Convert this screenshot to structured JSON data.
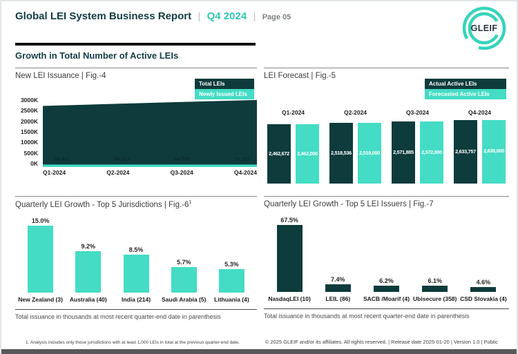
{
  "header": {
    "title": "Global LEI System Business Report",
    "divider": "|",
    "quarter": "Q4 2024",
    "page_label": "Page 05",
    "logo_text": "GLEIF"
  },
  "section_title": "Growth in Total Number of Active LEIs",
  "colors": {
    "dark_teal": "#0e3b3c",
    "teal": "#44dcc4",
    "accent_teal": "#2fc8b5",
    "heading_teal": "#123c46"
  },
  "chart_data": [
    {
      "id": "fig4",
      "type": "area",
      "title": "New LEI Issuance | Fig.-4",
      "legend": [
        "Total LEIs",
        "Newly Issued LEIs"
      ],
      "legend_position": "top-right",
      "grid": false,
      "x": [
        "Q1-2024",
        "Q2-2024",
        "Q3-2024",
        "Q4-2024"
      ],
      "y_ticks": [
        "3000K",
        "2500K",
        "2000K",
        "1500K",
        "1000K",
        "500K",
        "0K"
      ],
      "ylim": [
        0,
        3000000
      ],
      "series": [
        {
          "name": "Total LEIs",
          "color": "#0e3b3c",
          "values": [
            2605000,
            2690000,
            2775000,
            2855000
          ]
        },
        {
          "name": "Newly Issued LEIs",
          "color": "#44dcc4",
          "values": [
            54491,
            58018,
            64778,
            75157
          ],
          "labels": [
            "54,491",
            "58,018",
            "64,778",
            "75,157"
          ]
        }
      ]
    },
    {
      "id": "fig5",
      "type": "bar",
      "title": "LEI Forecast | Fig.-5",
      "legend": [
        "Actual Active LEIs",
        "Forecasted Active LEIs"
      ],
      "legend_position": "top-right",
      "grid": false,
      "categories": [
        "Q1-2024",
        "Q2-2024",
        "Q3-2024",
        "Q4-2024"
      ],
      "series": [
        {
          "name": "Actual Active LEIs",
          "color": "#0e3b3c",
          "values": [
            2462672,
            2518536,
            2571885,
            2633757
          ],
          "labels": [
            "2,462,672",
            "2,518,536",
            "2,571,885",
            "2,633,757"
          ]
        },
        {
          "name": "Forecasted Active LEIs",
          "color": "#44dcc4",
          "values": [
            2462000,
            2519000,
            2572000,
            2638000
          ],
          "labels": [
            "2,462,000",
            "2,519,000",
            "2,572,000",
            "2,638,000"
          ]
        }
      ]
    },
    {
      "id": "fig6",
      "type": "bar",
      "title": "Quarterly LEI Growth - Top 5 Jurisdictions | Fig.-6",
      "title_superscript": "1",
      "grid": false,
      "bar_color": "#44dcc4",
      "categories": [
        "New Zealand (3)",
        "Australia (40)",
        "India (214)",
        "Saudi Arabia (5)",
        "Lithuania (4)"
      ],
      "values": [
        15.0,
        9.2,
        8.5,
        5.7,
        5.3
      ],
      "labels": [
        "15.0%",
        "9.2%",
        "8.5%",
        "5.7%",
        "5.3%"
      ],
      "note": "Total issuance in thousands at most recent quarter-end date in parenthesis"
    },
    {
      "id": "fig7",
      "type": "bar",
      "title": "Quarterly LEI Growth - Top 5 LEI Issuers | Fig.-7",
      "grid": false,
      "bar_color": "#0e3b3c",
      "categories": [
        "NasdaqLEI (10)",
        "LEIL (86)",
        "SACB /Moarif (4)",
        "Ubisecure (358)",
        "CSD Slovakia (4)"
      ],
      "values": [
        67.5,
        7.4,
        6.2,
        6.1,
        4.6
      ],
      "labels": [
        "67.5%",
        "7.4%",
        "6.2%",
        "6.1%",
        "4.6%"
      ],
      "note": "Total issuance in thousands at most recent quarter-end date in parenthesis"
    }
  ],
  "footer": {
    "footnote": "1. Analysis includes only those jurisdictions with at least 1,000 LEIs in total at the previous quarter-end date.",
    "copyright": "© 2025 GLEIF and/or its affiliates. All rights reserved. | Release date 2025-01-20 | Version 1.0 | Public"
  }
}
